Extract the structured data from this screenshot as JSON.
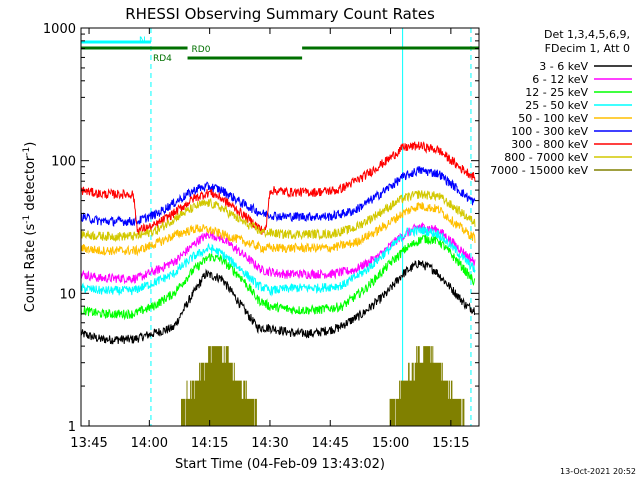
{
  "chart_data": {
    "type": "line",
    "title": "RHESSI Observing Summary Count Rates",
    "xlabel": "Start Time (04-Feb-09 13:43:02)",
    "ylabel_main": "Count Rate (s",
    "ylabel_sup1": "-1",
    "ylabel_mid": " detector",
    "ylabel_sup2": "-1",
    "ylabel_end": ")",
    "y_scale": "log",
    "ylim": [
      1,
      1000
    ],
    "xlim_minutes": [
      0,
      99
    ],
    "x_ticks": [
      {
        "label": "13:45",
        "min": 2
      },
      {
        "label": "14:00",
        "min": 17
      },
      {
        "label": "14:15",
        "min": 32
      },
      {
        "label": "14:30",
        "min": 47
      },
      {
        "label": "14:45",
        "min": 62
      },
      {
        "label": "15:00",
        "min": 77
      },
      {
        "label": "15:15",
        "min": 92
      }
    ],
    "y_ticks": [
      {
        "label": "1",
        "value": 1
      },
      {
        "label": "10",
        "value": 10
      },
      {
        "label": "100",
        "value": 100
      },
      {
        "label": "1000",
        "value": 1000
      }
    ],
    "legend_header": [
      "Det 1,3,4,5,6,9,",
      "FDecim 1, Att 0"
    ],
    "series": [
      {
        "name": "3 - 6 keV",
        "color": "#000000",
        "points": [
          [
            0,
            5
          ],
          [
            5,
            4.5
          ],
          [
            13,
            4.5
          ],
          [
            18,
            5
          ],
          [
            23,
            5.5
          ],
          [
            27,
            9
          ],
          [
            31,
            14
          ],
          [
            35,
            13
          ],
          [
            40,
            8
          ],
          [
            44,
            5.5
          ],
          [
            47,
            5.5
          ],
          [
            53,
            5
          ],
          [
            58,
            5
          ],
          [
            64,
            5.5
          ],
          [
            70,
            7
          ],
          [
            76,
            10
          ],
          [
            80,
            14
          ],
          [
            84,
            17
          ],
          [
            88,
            15
          ],
          [
            92,
            11
          ],
          [
            96,
            8
          ],
          [
            98,
            7.5
          ]
        ]
      },
      {
        "name": "6 - 12 keV",
        "color": "#ff00ff",
        "points": [
          [
            0,
            14
          ],
          [
            5,
            13
          ],
          [
            14,
            13
          ],
          [
            19,
            15
          ],
          [
            24,
            18
          ],
          [
            29,
            25
          ],
          [
            32,
            28
          ],
          [
            35,
            26
          ],
          [
            40,
            20
          ],
          [
            45,
            15
          ],
          [
            50,
            14
          ],
          [
            56,
            14
          ],
          [
            62,
            14
          ],
          [
            68,
            15
          ],
          [
            74,
            19
          ],
          [
            79,
            26
          ],
          [
            84,
            32
          ],
          [
            89,
            30
          ],
          [
            94,
            22
          ],
          [
            98,
            17
          ]
        ]
      },
      {
        "name": "12 - 25 keV",
        "color": "#00ff00",
        "points": [
          [
            0,
            7.5
          ],
          [
            5,
            7
          ],
          [
            13,
            7
          ],
          [
            18,
            8
          ],
          [
            23,
            10
          ],
          [
            28,
            15
          ],
          [
            32,
            19
          ],
          [
            35,
            18
          ],
          [
            40,
            13
          ],
          [
            44,
            9
          ],
          [
            47,
            8
          ],
          [
            53,
            7.5
          ],
          [
            59,
            7.5
          ],
          [
            65,
            8
          ],
          [
            71,
            11
          ],
          [
            77,
            17
          ],
          [
            81,
            22
          ],
          [
            85,
            26
          ],
          [
            89,
            25
          ],
          [
            94,
            17
          ],
          [
            98,
            12
          ]
        ]
      },
      {
        "name": "25 - 50 keV",
        "color": "#00ffff",
        "points": [
          [
            0,
            11
          ],
          [
            5,
            10.5
          ],
          [
            13,
            10.5
          ],
          [
            18,
            12
          ],
          [
            23,
            14
          ],
          [
            28,
            19
          ],
          [
            32,
            22
          ],
          [
            35,
            20
          ],
          [
            40,
            15
          ],
          [
            44,
            11.5
          ],
          [
            47,
            10.5
          ],
          [
            53,
            11
          ],
          [
            59,
            11
          ],
          [
            65,
            11.5
          ],
          [
            71,
            15
          ],
          [
            77,
            22
          ],
          [
            81,
            29
          ],
          [
            85,
            30
          ],
          [
            89,
            28
          ],
          [
            94,
            20
          ],
          [
            98,
            15
          ]
        ]
      },
      {
        "name": "50 - 100 keV",
        "color": "#ffbf00",
        "points": [
          [
            0,
            22
          ],
          [
            5,
            21
          ],
          [
            14,
            21
          ],
          [
            19,
            24
          ],
          [
            24,
            28
          ],
          [
            29,
            31
          ],
          [
            32,
            30
          ],
          [
            35,
            28
          ],
          [
            40,
            25
          ],
          [
            45,
            22
          ],
          [
            50,
            22
          ],
          [
            56,
            22
          ],
          [
            62,
            22
          ],
          [
            68,
            24
          ],
          [
            74,
            30
          ],
          [
            80,
            40
          ],
          [
            84,
            46
          ],
          [
            89,
            43
          ],
          [
            94,
            32
          ],
          [
            98,
            26
          ]
        ]
      },
      {
        "name": "100 - 300 keV",
        "color": "#0000ff",
        "points": [
          [
            0,
            38
          ],
          [
            5,
            35
          ],
          [
            14,
            35
          ],
          [
            19,
            40
          ],
          [
            24,
            50
          ],
          [
            29,
            62
          ],
          [
            32,
            64
          ],
          [
            35,
            60
          ],
          [
            40,
            48
          ],
          [
            45,
            40
          ],
          [
            50,
            38
          ],
          [
            56,
            38
          ],
          [
            62,
            38
          ],
          [
            68,
            42
          ],
          [
            74,
            55
          ],
          [
            80,
            75
          ],
          [
            84,
            85
          ],
          [
            89,
            80
          ],
          [
            94,
            60
          ],
          [
            98,
            48
          ]
        ]
      },
      {
        "name": "300 - 800 keV",
        "color": "#ff0000",
        "points": [
          [
            0,
            60
          ],
          [
            5,
            56
          ],
          [
            12,
            56
          ],
          [
            13,
            56
          ],
          [
            14,
            30
          ],
          [
            18,
            32
          ],
          [
            23,
            40
          ],
          [
            28,
            52
          ],
          [
            32,
            58
          ],
          [
            35,
            52
          ],
          [
            40,
            40
          ],
          [
            45,
            30
          ],
          [
            46,
            30
          ],
          [
            47,
            60
          ],
          [
            52,
            58
          ],
          [
            58,
            58
          ],
          [
            64,
            60
          ],
          [
            70,
            75
          ],
          [
            76,
            100
          ],
          [
            80,
            125
          ],
          [
            84,
            130
          ],
          [
            89,
            120
          ],
          [
            94,
            90
          ],
          [
            98,
            75
          ]
        ]
      },
      {
        "name": "800 - 7000 keV",
        "color": "#d2c800",
        "points": [
          [
            0,
            28
          ],
          [
            5,
            27
          ],
          [
            14,
            27
          ],
          [
            19,
            30
          ],
          [
            24,
            38
          ],
          [
            29,
            46
          ],
          [
            32,
            48
          ],
          [
            35,
            44
          ],
          [
            40,
            35
          ],
          [
            45,
            29
          ],
          [
            50,
            28
          ],
          [
            56,
            28
          ],
          [
            62,
            28
          ],
          [
            68,
            31
          ],
          [
            74,
            40
          ],
          [
            80,
            52
          ],
          [
            84,
            56
          ],
          [
            89,
            54
          ],
          [
            94,
            42
          ],
          [
            98,
            34
          ]
        ]
      },
      {
        "name": "7000 - 15000 keV",
        "color": "#808000",
        "points": []
      }
    ],
    "segments": [
      {
        "label": "N",
        "color": "#00ffff",
        "pieces": [
          [
            0,
            17.4
          ]
        ],
        "level": 1
      },
      {
        "label": "RD0",
        "color": "#007000",
        "pieces": [
          [
            0,
            26.5
          ],
          [
            55,
            99
          ]
        ],
        "level": 2
      },
      {
        "label": "RD4",
        "color": "#007000",
        "pieces": [
          [
            26.5,
            55
          ]
        ],
        "level": 3
      }
    ],
    "vlines": [
      {
        "min": 0,
        "color": "#00ffff",
        "style": "solid"
      },
      {
        "min": 17.4,
        "color": "#00ffff",
        "style": "dashed"
      },
      {
        "min": 80,
        "color": "#00ffff",
        "style": "solid"
      },
      {
        "min": 97,
        "color": "#00ffff",
        "style": "dashed"
      }
    ],
    "grid": false,
    "legend_position": "right"
  },
  "footer_date": "13-Oct-2021 20:52"
}
